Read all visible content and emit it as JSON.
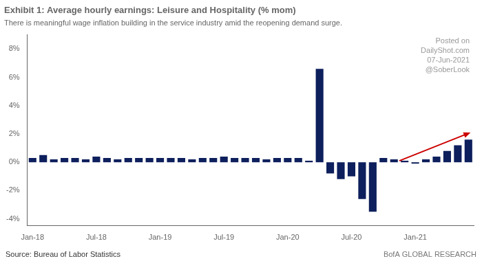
{
  "chart_data": {
    "type": "bar",
    "title": "Exhibit 1: Average hourly earnings: Leisure and Hospitality (% mom)",
    "subtitle": "There is meaningful wage inflation building in the service industry amid the reopening demand surge.",
    "annotations": [
      "Posted on",
      "DailyShot.com",
      "07-Jun-2021",
      "@SoberLook"
    ],
    "source": "Source: Bureau of Labor Statistics",
    "branding": "BofA GLOBAL RESEARCH",
    "categories": [
      "Jan-18",
      null,
      null,
      null,
      null,
      null,
      "Jul-18",
      null,
      null,
      null,
      null,
      null,
      "Jan-19",
      null,
      null,
      null,
      null,
      null,
      "Jul-19",
      null,
      null,
      null,
      null,
      null,
      "Jan-20",
      null,
      null,
      null,
      null,
      null,
      "Jul-20",
      null,
      null,
      null,
      null,
      null,
      "Jan-21",
      null,
      null,
      null,
      null,
      null
    ],
    "values": [
      0.3,
      0.5,
      0.2,
      0.3,
      0.3,
      0.2,
      0.4,
      0.3,
      0.2,
      0.3,
      0.3,
      0.3,
      0.3,
      0.3,
      0.3,
      0.2,
      0.3,
      0.3,
      0.4,
      0.3,
      0.3,
      0.3,
      0.2,
      0.3,
      0.3,
      0.3,
      0.1,
      6.6,
      -0.8,
      -1.2,
      -1.0,
      -2.6,
      -3.5,
      0.3,
      0.2,
      0.1,
      -0.1,
      0.2,
      0.4,
      0.8,
      1.2,
      1.6
    ],
    "color": "#0d1f5c",
    "ylim": [
      -4.5,
      9.0
    ],
    "yticks": [
      {
        "value": -4,
        "label": "-4%"
      },
      {
        "value": -2,
        "label": "-2%"
      },
      {
        "value": 0,
        "label": "0%"
      },
      {
        "value": 2,
        "label": "2%"
      },
      {
        "value": 4,
        "label": "4%"
      },
      {
        "value": 6,
        "label": "6%"
      },
      {
        "value": 8,
        "label": "8%"
      }
    ],
    "grid": false,
    "arrow": {
      "x": [
        34.5,
        41.2
      ],
      "y": [
        0.1,
        2.1
      ],
      "color": "#cc0000"
    }
  }
}
